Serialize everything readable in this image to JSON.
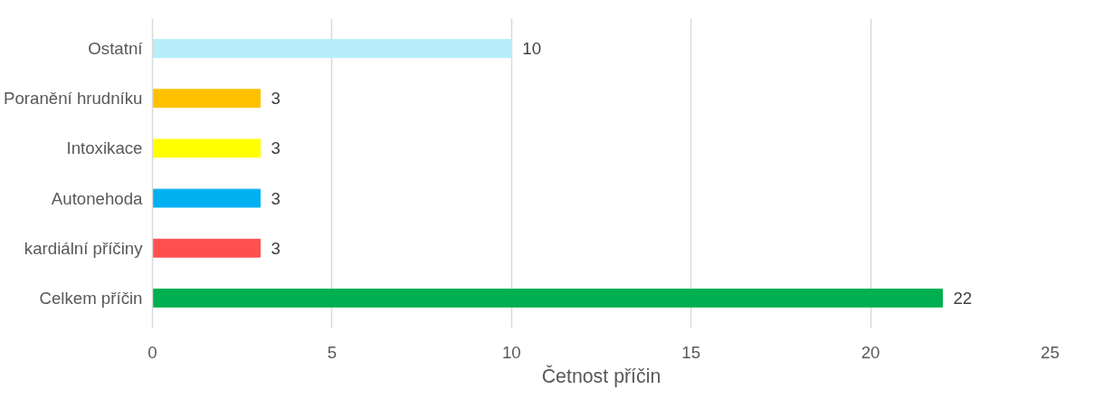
{
  "chart_data": {
    "type": "bar",
    "orientation": "horizontal",
    "xlabel": "Četnost příčin",
    "categories": [
      "Ostatní",
      "Poranění hrudníku",
      "Intoxikace",
      "Autonehoda",
      "kardiální příčiny",
      "Celkem příčin"
    ],
    "values": [
      10,
      3,
      3,
      3,
      3,
      22
    ],
    "colors": [
      "#b7eefa",
      "#ffc000",
      "#ffff00",
      "#00b0f0",
      "#ff5050",
      "#00b050"
    ],
    "xlim": [
      0,
      25
    ],
    "xticks": [
      0,
      5,
      10,
      15,
      20,
      25
    ],
    "grid": "x",
    "data_labels": true
  }
}
